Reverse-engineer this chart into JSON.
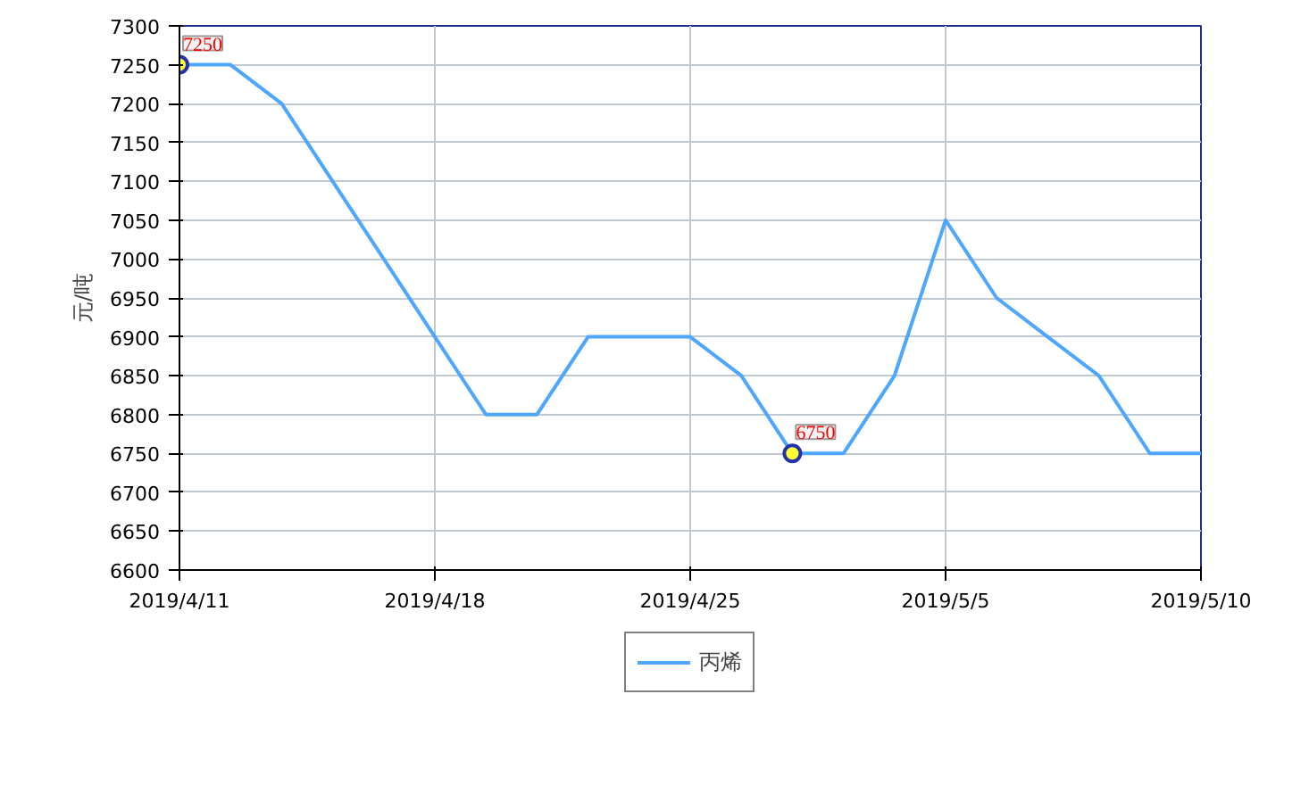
{
  "chart_data": {
    "type": "line",
    "ylabel": "元/吨",
    "categories": [
      "2019/4/11",
      null,
      null,
      null,
      null,
      "2019/4/18",
      null,
      null,
      null,
      null,
      "2019/4/25",
      null,
      null,
      null,
      null,
      "2019/5/5",
      null,
      null,
      null,
      null,
      "2019/5/10"
    ],
    "series": [
      {
        "name": "丙烯",
        "color": "#4da6ff",
        "values": [
          7250,
          7250,
          7200,
          7100,
          7000,
          6900,
          6800,
          6800,
          6900,
          6900,
          6900,
          6850,
          6750,
          6750,
          6850,
          7050,
          6950,
          6900,
          6850,
          6750,
          6750
        ],
        "value_labels": [
          "7250",
          null,
          null,
          null,
          null,
          null,
          null,
          null,
          null,
          null,
          null,
          null,
          "6750",
          null,
          null,
          null,
          null,
          null,
          null,
          null,
          null
        ]
      }
    ],
    "ylim": [
      6600,
      7300
    ],
    "yticks": [
      6600,
      6650,
      6700,
      6750,
      6800,
      6850,
      6900,
      6950,
      7000,
      7050,
      7100,
      7150,
      7200,
      7250,
      7300
    ],
    "grid": true,
    "legend": "bottom",
    "marker": "none",
    "line_style": "solid"
  }
}
